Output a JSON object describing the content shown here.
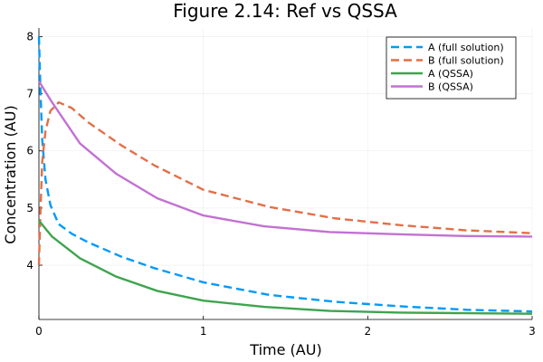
{
  "chart_data": {
    "type": "line",
    "title": "Figure 2.14: Ref vs QSSA",
    "xlabel": "Time (AU)",
    "ylabel": "Concentration (AU)",
    "xlim": [
      0,
      3
    ],
    "ylim": [
      3.05,
      8.15
    ],
    "xticks": [
      0,
      1,
      2,
      3
    ],
    "xtick_labels": [
      "0",
      "1",
      "2",
      "3"
    ],
    "yticks": [
      4,
      5,
      6,
      7,
      8
    ],
    "ytick_labels": [
      "4",
      "5",
      "6",
      "7",
      "8"
    ],
    "grid": true,
    "legend_position": "top-right",
    "series": [
      {
        "name": "A (full solution)",
        "color": "#009AFA",
        "dash": "dashed",
        "points": [
          [
            0,
            8.0
          ],
          [
            0.01,
            7.0
          ],
          [
            0.02,
            6.2
          ],
          [
            0.04,
            5.5
          ],
          [
            0.07,
            5.05
          ],
          [
            0.12,
            4.72
          ],
          [
            0.2,
            4.55
          ],
          [
            0.3,
            4.4
          ],
          [
            0.5,
            4.15
          ],
          [
            0.7,
            3.95
          ],
          [
            1.0,
            3.7
          ],
          [
            1.4,
            3.48
          ],
          [
            1.8,
            3.36
          ],
          [
            2.2,
            3.28
          ],
          [
            2.6,
            3.22
          ],
          [
            3.0,
            3.19
          ]
        ]
      },
      {
        "name": "B (full solution)",
        "color": "#E36F47",
        "dash": "dashed",
        "points": [
          [
            0,
            4.0
          ],
          [
            0.01,
            5.0
          ],
          [
            0.02,
            5.8
          ],
          [
            0.04,
            6.35
          ],
          [
            0.07,
            6.7
          ],
          [
            0.12,
            6.85
          ],
          [
            0.2,
            6.75
          ],
          [
            0.3,
            6.5
          ],
          [
            0.5,
            6.1
          ],
          [
            0.7,
            5.75
          ],
          [
            1.0,
            5.32
          ],
          [
            1.4,
            5.02
          ],
          [
            1.8,
            4.82
          ],
          [
            2.2,
            4.7
          ],
          [
            2.6,
            4.61
          ],
          [
            3.0,
            4.56
          ]
        ]
      },
      {
        "name": "A (QSSA)",
        "color": "#3EA44E",
        "dash": "solid",
        "points": [
          [
            0,
            4.78
          ],
          [
            0.08,
            4.5
          ],
          [
            0.25,
            4.12
          ],
          [
            0.47,
            3.8
          ],
          [
            0.72,
            3.55
          ],
          [
            1.0,
            3.38
          ],
          [
            1.37,
            3.27
          ],
          [
            1.77,
            3.2
          ],
          [
            2.2,
            3.17
          ],
          [
            2.6,
            3.16
          ],
          [
            3.0,
            3.15
          ]
        ]
      },
      {
        "name": "B (QSSA)",
        "color": "#C271D2",
        "dash": "solid",
        "points": [
          [
            0,
            7.22
          ],
          [
            0.08,
            6.85
          ],
          [
            0.25,
            6.13
          ],
          [
            0.47,
            5.6
          ],
          [
            0.72,
            5.17
          ],
          [
            1.0,
            4.87
          ],
          [
            1.37,
            4.68
          ],
          [
            1.77,
            4.58
          ],
          [
            2.2,
            4.54
          ],
          [
            2.6,
            4.51
          ],
          [
            3.0,
            4.5
          ]
        ]
      }
    ]
  }
}
